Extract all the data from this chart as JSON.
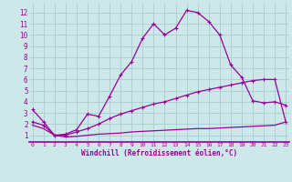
{
  "xlabel": "Windchill (Refroidissement éolien,°C)",
  "bg_color": "#cce8e8",
  "line_color": "#990099",
  "grid_color": "#aacccc",
  "x_ticks": [
    0,
    1,
    2,
    3,
    4,
    5,
    6,
    7,
    8,
    9,
    10,
    11,
    12,
    13,
    14,
    15,
    16,
    17,
    18,
    19,
    20,
    21,
    22,
    23
  ],
  "y_ticks": [
    1,
    2,
    3,
    4,
    5,
    6,
    7,
    8,
    9,
    10,
    11,
    12
  ],
  "xlim": [
    -0.3,
    23.3
  ],
  "ylim": [
    0.4,
    12.8
  ],
  "curve1_x": [
    0,
    1,
    2,
    3,
    4,
    5,
    6,
    7,
    8,
    9,
    10,
    11,
    12,
    13,
    14,
    15,
    16,
    17,
    18,
    19,
    20,
    21,
    22,
    23
  ],
  "curve1_y": [
    3.3,
    2.2,
    1.0,
    1.1,
    1.5,
    2.9,
    2.7,
    4.5,
    6.4,
    7.6,
    9.7,
    11.0,
    10.0,
    10.6,
    12.2,
    12.0,
    11.2,
    10.0,
    7.3,
    6.2,
    4.1,
    3.9,
    4.0,
    3.7
  ],
  "curve2_x": [
    0,
    1,
    2,
    3,
    4,
    5,
    6,
    7,
    8,
    9,
    10,
    11,
    12,
    13,
    14,
    15,
    16,
    17,
    18,
    19,
    20,
    21,
    22,
    23
  ],
  "curve2_y": [
    2.2,
    1.9,
    1.0,
    1.0,
    1.3,
    1.6,
    2.0,
    2.5,
    2.9,
    3.2,
    3.5,
    3.8,
    4.0,
    4.3,
    4.6,
    4.9,
    5.1,
    5.3,
    5.5,
    5.7,
    5.9,
    6.0,
    6.0,
    2.2
  ],
  "curve3_x": [
    0,
    1,
    2,
    3,
    4,
    5,
    6,
    7,
    8,
    9,
    10,
    11,
    12,
    13,
    14,
    15,
    16,
    17,
    18,
    19,
    20,
    21,
    22,
    23
  ],
  "curve3_y": [
    1.9,
    1.6,
    1.0,
    0.85,
    0.9,
    1.0,
    1.1,
    1.15,
    1.2,
    1.3,
    1.35,
    1.4,
    1.45,
    1.5,
    1.55,
    1.6,
    1.6,
    1.65,
    1.7,
    1.75,
    1.8,
    1.85,
    1.9,
    2.2
  ]
}
